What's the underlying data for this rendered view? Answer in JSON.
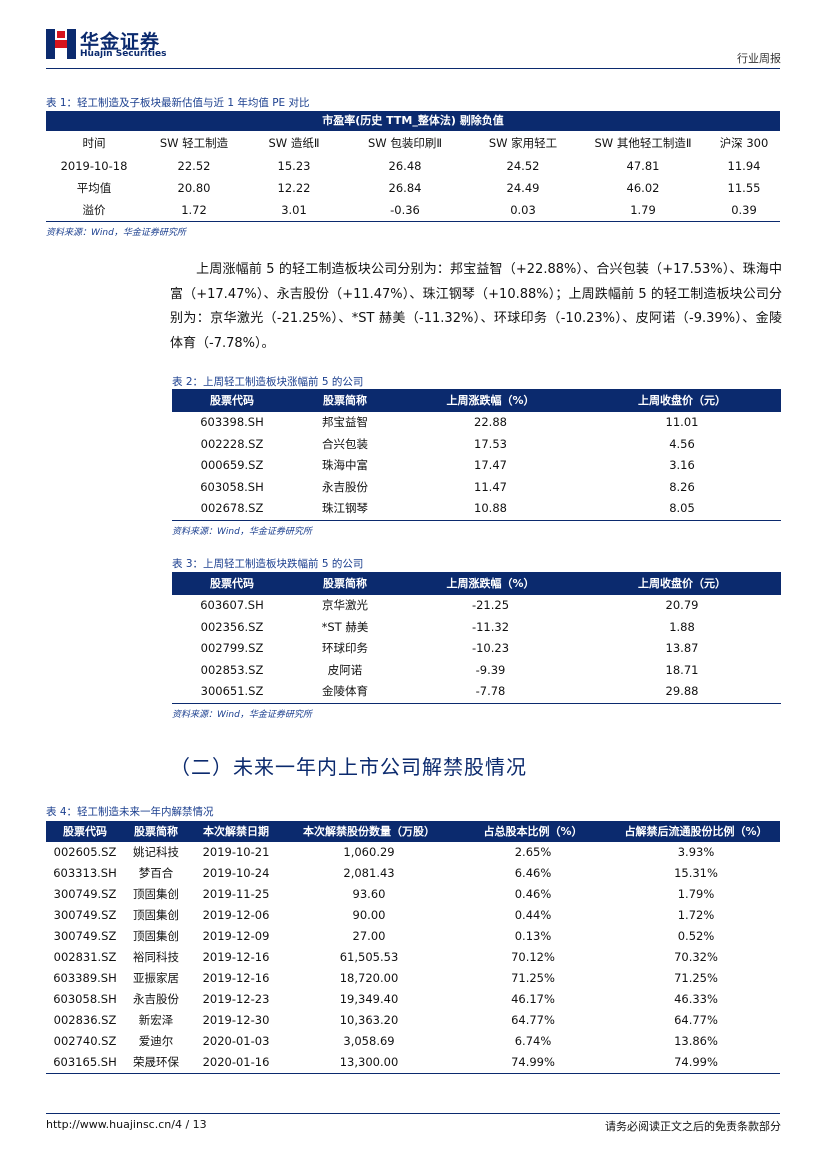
{
  "header": {
    "logo_cn": "华金证券",
    "logo_en": "Huajin Securities",
    "doc_type": "行业周报"
  },
  "table1": {
    "caption": "表 1：轻工制造及子板块最新估值与近 1 年均值 PE 对比",
    "band": "市盈率(历史 TTM_整体法) 剔除负值",
    "columns": [
      "时间",
      "SW 轻工制造",
      "SW 造纸Ⅱ",
      "SW 包装印刷Ⅱ",
      "SW 家用轻工",
      "SW 其他轻工制造Ⅱ",
      "沪深 300"
    ],
    "rows": [
      [
        "2019-10-18",
        "22.52",
        "15.23",
        "26.48",
        "24.52",
        "47.81",
        "11.94"
      ],
      [
        "平均值",
        "20.80",
        "12.22",
        "26.84",
        "24.49",
        "46.02",
        "11.55"
      ],
      [
        "溢价",
        "1.72",
        "3.01",
        "-0.36",
        "0.03",
        "1.79",
        "0.39"
      ]
    ],
    "source": "资料来源：Wind，华金证券研究所"
  },
  "paragraph": "上周涨幅前 5 的轻工制造板块公司分别为：邦宝益智（+22.88%）、合兴包装（+17.53%）、珠海中富（+17.47%）、永吉股份（+11.47%）、珠江钢琴（+10.88%）；上周跌幅前 5 的轻工制造板块公司分别为：京华激光（-21.25%）、*ST 赫美（-11.32%）、环球印务（-10.23%）、皮阿诺（-9.39%）、金陵体育（-7.78%）。",
  "table2": {
    "caption": "表 2：上周轻工制造板块涨幅前 5 的公司",
    "columns": [
      "股票代码",
      "股票简称",
      "上周涨跌幅（%）",
      "上周收盘价（元）"
    ],
    "rows": [
      [
        "603398.SH",
        "邦宝益智",
        "22.88",
        "11.01"
      ],
      [
        "002228.SZ",
        "合兴包装",
        "17.53",
        "4.56"
      ],
      [
        "000659.SZ",
        "珠海中富",
        "17.47",
        "3.16"
      ],
      [
        "603058.SH",
        "永吉股份",
        "11.47",
        "8.26"
      ],
      [
        "002678.SZ",
        "珠江钢琴",
        "10.88",
        "8.05"
      ]
    ],
    "source": "资料来源：Wind，华金证券研究所"
  },
  "table3": {
    "caption": "表 3：上周轻工制造板块跌幅前 5 的公司",
    "columns": [
      "股票代码",
      "股票简称",
      "上周涨跌幅（%）",
      "上周收盘价（元）"
    ],
    "rows": [
      [
        "603607.SH",
        "京华激光",
        "-21.25",
        "20.79"
      ],
      [
        "002356.SZ",
        "*ST 赫美",
        "-11.32",
        "1.88"
      ],
      [
        "002799.SZ",
        "环球印务",
        "-10.23",
        "13.87"
      ],
      [
        "002853.SZ",
        "皮阿诺",
        "-9.39",
        "18.71"
      ],
      [
        "300651.SZ",
        "金陵体育",
        "-7.78",
        "29.88"
      ]
    ],
    "source": "资料来源：Wind，华金证券研究所"
  },
  "section_title": "（二）未来一年内上市公司解禁股情况",
  "table4": {
    "caption": "表 4：轻工制造未来一年内解禁情况",
    "columns": [
      "股票代码",
      "股票简称",
      "本次解禁日期",
      "本次解禁股份数量（万股）",
      "占总股本比例（%）",
      "占解禁后流通股份比例（%）"
    ],
    "rows": [
      [
        "002605.SZ",
        "姚记科技",
        "2019-10-21",
        "1,060.29",
        "2.65%",
        "3.93%"
      ],
      [
        "603313.SH",
        "梦百合",
        "2019-10-24",
        "2,081.43",
        "6.46%",
        "15.31%"
      ],
      [
        "300749.SZ",
        "顶固集创",
        "2019-11-25",
        "93.60",
        "0.46%",
        "1.79%"
      ],
      [
        "300749.SZ",
        "顶固集创",
        "2019-12-06",
        "90.00",
        "0.44%",
        "1.72%"
      ],
      [
        "300749.SZ",
        "顶固集创",
        "2019-12-09",
        "27.00",
        "0.13%",
        "0.52%"
      ],
      [
        "002831.SZ",
        "裕同科技",
        "2019-12-16",
        "61,505.53",
        "70.12%",
        "70.32%"
      ],
      [
        "603389.SH",
        "亚振家居",
        "2019-12-16",
        "18,720.00",
        "71.25%",
        "71.25%"
      ],
      [
        "603058.SH",
        "永吉股份",
        "2019-12-23",
        "19,349.40",
        "46.17%",
        "46.33%"
      ],
      [
        "002836.SZ",
        "新宏泽",
        "2019-12-30",
        "10,363.20",
        "64.77%",
        "64.77%"
      ],
      [
        "002740.SZ",
        "爱迪尔",
        "2020-01-03",
        "3,058.69",
        "6.74%",
        "13.86%"
      ],
      [
        "603165.SH",
        "荣晟环保",
        "2020-01-16",
        "13,300.00",
        "74.99%",
        "74.99%"
      ]
    ]
  },
  "footer": {
    "url_page": "http://www.huajinsc.cn/4 / 13",
    "disclaimer": "请务必阅读正文之后的免责条款部分"
  },
  "colors": {
    "brand_navy": "#0b2a6e",
    "logo_red": "#d7141d",
    "caption_blue": "#1b3f8f"
  }
}
